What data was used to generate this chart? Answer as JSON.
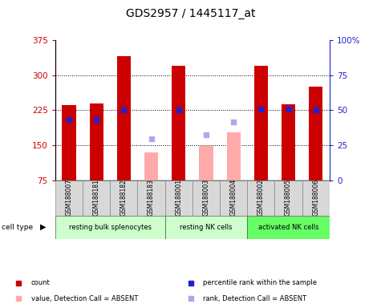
{
  "title": "GDS2957 / 1445117_at",
  "samples": [
    "GSM188007",
    "GSM188181",
    "GSM188182",
    "GSM188183",
    "GSM188001",
    "GSM188003",
    "GSM188004",
    "GSM188002",
    "GSM188005",
    "GSM188006"
  ],
  "cell_types": [
    {
      "label": "resting bulk splenocytes",
      "start": 0,
      "end": 4,
      "color": "#ccffcc"
    },
    {
      "label": "resting NK cells",
      "start": 4,
      "end": 7,
      "color": "#ccffcc"
    },
    {
      "label": "activated NK cells",
      "start": 7,
      "end": 10,
      "color": "#66ff66"
    }
  ],
  "count_values": [
    236,
    240,
    340,
    null,
    320,
    null,
    null,
    320,
    237,
    275
  ],
  "count_absent": [
    null,
    null,
    null,
    135,
    null,
    148,
    177,
    null,
    null,
    null
  ],
  "percentile_values": [
    205,
    205,
    226,
    null,
    226,
    null,
    null,
    228,
    228,
    226
  ],
  "percentile_absent": [
    null,
    null,
    null,
    163,
    null,
    173,
    200,
    null,
    null,
    null
  ],
  "ylim_left": [
    75,
    375
  ],
  "ylim_right": [
    0,
    100
  ],
  "yticks_left": [
    75,
    150,
    225,
    300,
    375
  ],
  "yticks_right": [
    0,
    25,
    50,
    75,
    100
  ],
  "bar_width": 0.5,
  "count_color": "#cc0000",
  "count_absent_color": "#ffaaaa",
  "percentile_color": "#2222cc",
  "percentile_absent_color": "#aaaaee",
  "bg_color": "#d8d8d8",
  "plot_bg": "#ffffff",
  "left_axis_color": "#cc0000",
  "right_axis_color": "#2222cc"
}
